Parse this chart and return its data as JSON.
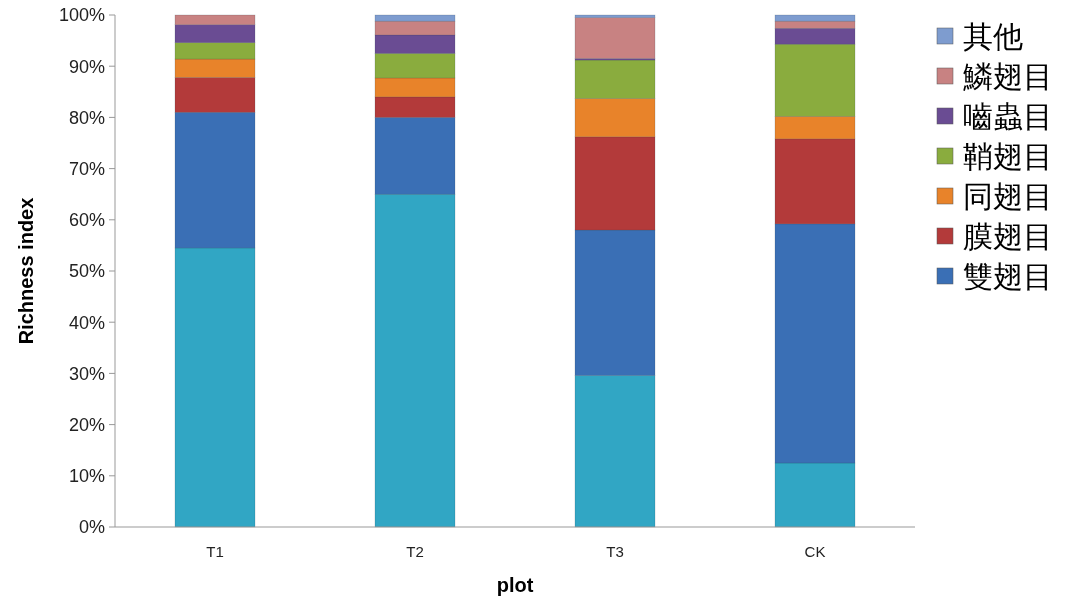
{
  "chart_data": {
    "type": "bar",
    "stacked": true,
    "xlabel": "plot",
    "ylabel": "Richness index",
    "categories": [
      "T1",
      "T2",
      "T3",
      "CK"
    ],
    "ylim": [
      0,
      100
    ],
    "yticks": [
      {
        "value": 0,
        "label": "0%"
      },
      {
        "value": 10,
        "label": "10%"
      },
      {
        "value": 20,
        "label": "20%"
      },
      {
        "value": 30,
        "label": "30%"
      },
      {
        "value": 40,
        "label": "40%"
      },
      {
        "value": 50,
        "label": "50%"
      },
      {
        "value": 60,
        "label": "60%"
      },
      {
        "value": 70,
        "label": "70%"
      },
      {
        "value": 80,
        "label": "80%"
      },
      {
        "value": 90,
        "label": "90%"
      },
      {
        "value": 100,
        "label": "100%"
      }
    ],
    "grid": false,
    "legend": "right",
    "series": [
      {
        "color": "#31a6c4",
        "values": [
          54.5,
          65,
          29.6,
          12.5
        ]
      },
      {
        "name": "雙翅目",
        "color": "#3a6fb5",
        "values": [
          26.5,
          15,
          28.4,
          46.7
        ]
      },
      {
        "name": "膜翅目",
        "color": "#b33a3a",
        "values": [
          6.8,
          4,
          18.2,
          16.6
        ]
      },
      {
        "name": "同翅目",
        "color": "#e8832a",
        "values": [
          3.6,
          3.7,
          7.5,
          4.4
        ]
      },
      {
        "name": "鞘翅目",
        "color": "#8aac3e",
        "values": [
          3.2,
          4.8,
          7.5,
          14.1
        ]
      },
      {
        "name": "嚙蟲目",
        "color": "#6a4c93",
        "values": [
          3.5,
          3.6,
          0.3,
          3.1
        ]
      },
      {
        "name": "鱗翅目",
        "color": "#c88282",
        "values": [
          1.9,
          2.7,
          8,
          1.4
        ]
      },
      {
        "name": "其他",
        "color": "#7e9ccf",
        "values": [
          0,
          1.2,
          0.5,
          1.2
        ]
      }
    ]
  }
}
